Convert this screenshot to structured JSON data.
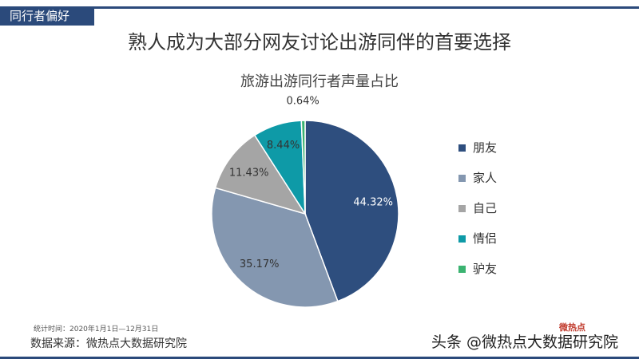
{
  "tag": "同行者偏好",
  "headline": "熟人成为大部分网友讨论出游同伴的首要选择",
  "chart_data": {
    "type": "pie",
    "title": "旅游出游同行者声量占比",
    "categories": [
      "朋友",
      "家人",
      "自己",
      "情侣",
      "驴友"
    ],
    "values": [
      44.32,
      35.17,
      11.43,
      8.44,
      0.64
    ],
    "labels": [
      "44.32%",
      "35.17%",
      "11.43%",
      "8.44%",
      "0.64%"
    ],
    "colors": [
      "#2e4e7e",
      "#8497b0",
      "#a5a5a5",
      "#0e9aa7",
      "#3bb371"
    ],
    "legend_position": "right"
  },
  "footer": {
    "stat_time": "统计时间：2020年1月1日—12月31日",
    "source": "数据来源：微热点大数据研究院"
  },
  "watermark": {
    "text": "头条 @微热点大数据研究院",
    "logo": "微热点"
  }
}
